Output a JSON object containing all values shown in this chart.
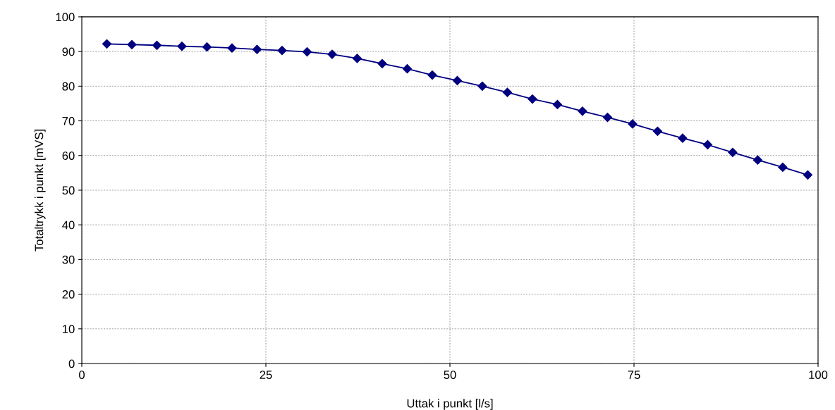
{
  "chart_data": {
    "type": "line",
    "xlabel": "Uttak i punkt [l/s]",
    "ylabel": "Totaltrykk i punkt [mVS]",
    "x": [
      3.4,
      6.8,
      10.2,
      13.6,
      17.0,
      20.4,
      23.8,
      27.2,
      30.6,
      34.0,
      37.4,
      40.8,
      44.2,
      47.6,
      51.0,
      54.4,
      57.8,
      61.2,
      64.6,
      68.0,
      71.4,
      74.8,
      78.2,
      81.6,
      85.0,
      88.4,
      91.8,
      95.2,
      98.6
    ],
    "series": [
      {
        "color": "#000080",
        "values": [
          92.2,
          92.0,
          91.8,
          91.5,
          91.3,
          91.0,
          90.6,
          90.3,
          89.9,
          89.2,
          88.0,
          86.5,
          85.0,
          83.2,
          81.6,
          80.0,
          78.2,
          76.3,
          74.7,
          72.8,
          71.0,
          69.1,
          67.0,
          65.0,
          63.1,
          60.9,
          58.7,
          56.6,
          54.4
        ]
      }
    ],
    "xlim": [
      0,
      100
    ],
    "xticks": [
      0,
      25,
      50,
      75,
      100
    ],
    "ylim": [
      0,
      100
    ],
    "yticks": [
      0,
      10,
      20,
      30,
      40,
      50,
      60,
      70,
      80,
      90,
      100
    ],
    "grid": true,
    "marker": "diamond",
    "line_style": "solid",
    "legend": false
  }
}
